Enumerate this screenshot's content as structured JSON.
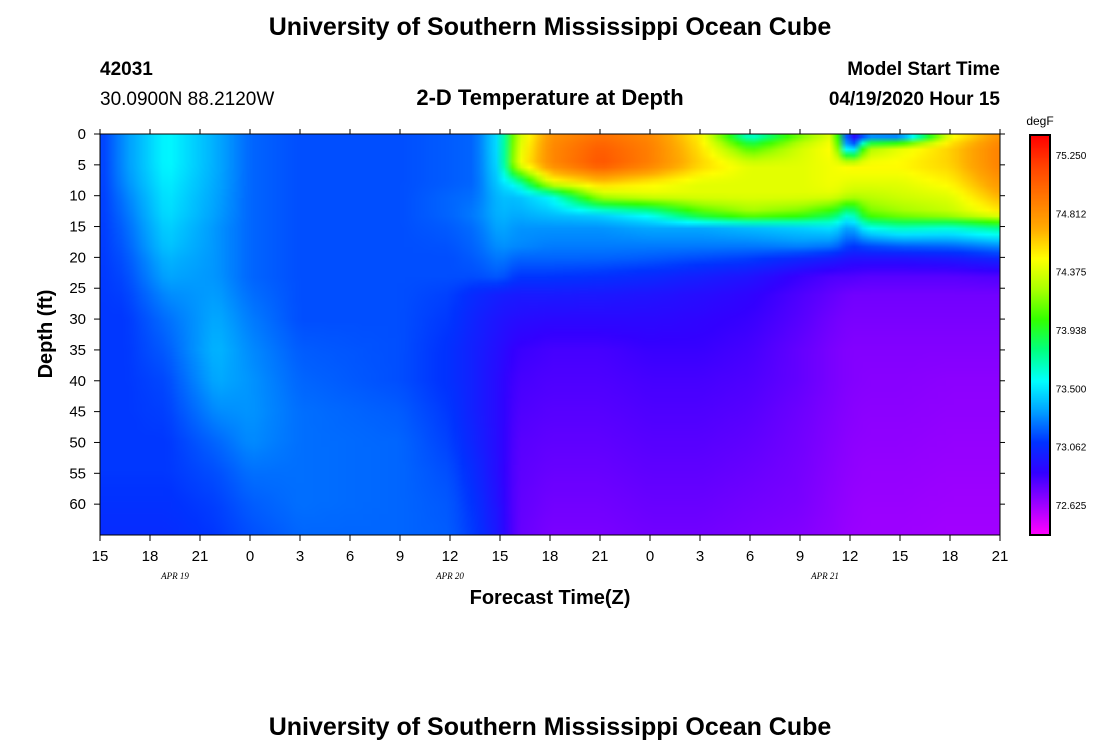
{
  "header": {
    "title": "University of Southern Mississippi Ocean Cube",
    "station_id": "42031",
    "location": "30.0900N 88.2120W",
    "plot_title": "2-D Temperature at Depth",
    "model_start_label": "Model Start Time",
    "model_start_value": "04/19/2020 Hour 15"
  },
  "footer": {
    "title": "University of Southern Mississippi Ocean Cube"
  },
  "chart_data": {
    "type": "heatmap",
    "title": "2-D Temperature at Depth",
    "xlabel": "Forecast Time(Z)",
    "ylabel": "Depth (ft)",
    "x_range_hours": [
      0,
      54
    ],
    "x_ticks": [
      {
        "hour": 0,
        "label": "15"
      },
      {
        "hour": 3,
        "label": "18"
      },
      {
        "hour": 6,
        "label": "21"
      },
      {
        "hour": 9,
        "label": "0"
      },
      {
        "hour": 12,
        "label": "3"
      },
      {
        "hour": 15,
        "label": "6"
      },
      {
        "hour": 18,
        "label": "9"
      },
      {
        "hour": 21,
        "label": "12"
      },
      {
        "hour": 24,
        "label": "15"
      },
      {
        "hour": 27,
        "label": "18"
      },
      {
        "hour": 30,
        "label": "21"
      },
      {
        "hour": 33,
        "label": "0"
      },
      {
        "hour": 36,
        "label": "3"
      },
      {
        "hour": 39,
        "label": "6"
      },
      {
        "hour": 42,
        "label": "9"
      },
      {
        "hour": 45,
        "label": "12"
      },
      {
        "hour": 48,
        "label": "15"
      },
      {
        "hour": 51,
        "label": "18"
      },
      {
        "hour": 54,
        "label": "21"
      }
    ],
    "date_labels": [
      {
        "hour": 4.5,
        "label": "APR 19"
      },
      {
        "hour": 21,
        "label": "APR 20"
      },
      {
        "hour": 43.5,
        "label": "APR 21"
      }
    ],
    "y_range_ft": [
      0,
      65
    ],
    "y_ticks": [
      0,
      5,
      10,
      15,
      20,
      25,
      30,
      35,
      40,
      45,
      50,
      55,
      60
    ],
    "colorbar": {
      "unit": "degF",
      "range": [
        72.4,
        75.4
      ],
      "tick_values": [
        75.25,
        74.812,
        74.375,
        73.938,
        73.5,
        73.062,
        72.625
      ],
      "tick_labels": [
        "75.250",
        "74.812",
        "74.375",
        "73.938",
        "73.500",
        "73.062",
        "72.625"
      ],
      "colors": [
        "#ff00ff",
        "#9900ff",
        "#3300ff",
        "#0033ff",
        "#00a0ff",
        "#00ffff",
        "#00ff80",
        "#33ff00",
        "#aaff00",
        "#ffff00",
        "#ffaa00",
        "#ff7700",
        "#ff4400",
        "#ff0000"
      ]
    },
    "temperature_field": {
      "units": "degF",
      "time_hours": [
        0,
        1.5,
        4,
        7,
        9,
        12,
        18,
        21,
        22.5,
        24,
        25,
        27,
        30,
        33,
        36,
        39,
        42,
        44,
        45,
        46,
        48,
        51,
        54
      ],
      "depth_ft": [
        0,
        2,
        5,
        8,
        10,
        13,
        15,
        18,
        20,
        23,
        26,
        30,
        35,
        40,
        45,
        50,
        55,
        60,
        65
      ],
      "values": [
        [
          73.1,
          73.3,
          73.55,
          73.35,
          73.2,
          73.15,
          73.15,
          73.18,
          73.2,
          73.52,
          74.3,
          74.8,
          74.95,
          74.85,
          74.5,
          73.5,
          74.1,
          74.4,
          72.7,
          73.0,
          72.9,
          74.4,
          74.8
        ],
        [
          73.1,
          73.3,
          73.55,
          73.35,
          73.2,
          73.15,
          73.15,
          73.18,
          73.2,
          73.52,
          74.35,
          74.85,
          75.05,
          74.9,
          74.55,
          74.0,
          74.35,
          74.5,
          73.0,
          74.2,
          74.4,
          74.6,
          74.9
        ],
        [
          73.1,
          73.3,
          73.55,
          73.35,
          73.2,
          73.15,
          73.15,
          73.18,
          73.2,
          73.5,
          74.4,
          74.85,
          75.1,
          74.9,
          74.6,
          74.4,
          74.4,
          74.45,
          74.5,
          74.5,
          74.5,
          74.6,
          74.9
        ],
        [
          73.1,
          73.28,
          73.52,
          73.34,
          73.2,
          73.15,
          73.15,
          73.18,
          73.2,
          73.45,
          73.6,
          74.4,
          74.6,
          74.5,
          74.4,
          74.4,
          74.4,
          74.45,
          74.4,
          74.4,
          74.4,
          74.5,
          74.8
        ],
        [
          73.1,
          73.25,
          73.5,
          73.33,
          73.2,
          73.15,
          73.15,
          73.2,
          73.22,
          73.4,
          73.4,
          73.55,
          74.3,
          74.4,
          74.4,
          74.4,
          74.4,
          74.4,
          74.3,
          74.3,
          74.35,
          74.4,
          74.7
        ],
        [
          73.1,
          73.22,
          73.48,
          73.32,
          73.2,
          73.15,
          73.15,
          73.2,
          73.25,
          73.38,
          73.35,
          73.4,
          73.45,
          73.6,
          74.0,
          74.2,
          74.1,
          73.9,
          73.6,
          74.1,
          74.2,
          74.3,
          74.5
        ],
        [
          73.1,
          73.2,
          73.45,
          73.3,
          73.2,
          73.15,
          73.15,
          73.18,
          73.22,
          73.35,
          73.3,
          73.3,
          73.3,
          73.35,
          73.35,
          73.4,
          73.45,
          73.5,
          73.3,
          73.6,
          73.7,
          73.65,
          73.8
        ],
        [
          73.1,
          73.18,
          73.42,
          73.3,
          73.2,
          73.15,
          73.15,
          73.16,
          73.2,
          73.3,
          73.28,
          73.25,
          73.25,
          73.25,
          73.25,
          73.25,
          73.28,
          73.25,
          73.1,
          73.15,
          73.2,
          73.22,
          73.3
        ],
        [
          73.1,
          73.16,
          73.38,
          73.3,
          73.2,
          73.15,
          73.15,
          73.15,
          73.18,
          73.25,
          73.2,
          73.2,
          73.2,
          73.18,
          73.15,
          73.12,
          73.05,
          73.0,
          72.95,
          72.95,
          72.95,
          72.98,
          73.05
        ],
        [
          73.1,
          73.14,
          73.34,
          73.3,
          73.2,
          73.15,
          73.15,
          73.15,
          73.15,
          73.18,
          73.1,
          73.1,
          73.08,
          73.05,
          73.0,
          72.95,
          72.85,
          72.8,
          72.8,
          72.78,
          72.78,
          72.78,
          72.8
        ],
        [
          73.1,
          73.12,
          73.28,
          73.32,
          73.22,
          73.15,
          73.15,
          73.12,
          73.05,
          73.0,
          72.98,
          72.98,
          72.97,
          72.95,
          72.92,
          72.88,
          72.8,
          72.75,
          72.72,
          72.72,
          72.72,
          72.72,
          72.72
        ],
        [
          73.1,
          73.1,
          73.22,
          73.35,
          73.25,
          73.15,
          73.15,
          73.1,
          73.02,
          72.95,
          72.92,
          72.9,
          72.9,
          72.9,
          72.88,
          72.85,
          72.78,
          72.72,
          72.7,
          72.7,
          72.7,
          72.7,
          72.7
        ],
        [
          73.1,
          73.1,
          73.18,
          73.38,
          73.28,
          73.18,
          73.15,
          73.08,
          73.0,
          72.92,
          72.85,
          72.82,
          72.82,
          72.85,
          72.85,
          72.82,
          72.75,
          72.7,
          72.68,
          72.68,
          72.68,
          72.68,
          72.68
        ],
        [
          73.1,
          73.1,
          73.14,
          73.35,
          73.3,
          73.2,
          73.15,
          73.08,
          73.0,
          72.9,
          72.82,
          72.8,
          72.8,
          72.82,
          72.82,
          72.8,
          72.75,
          72.7,
          72.68,
          72.67,
          72.67,
          72.66,
          72.66
        ],
        [
          73.1,
          73.1,
          73.12,
          73.28,
          73.3,
          73.22,
          73.18,
          73.1,
          73.0,
          72.9,
          72.8,
          72.78,
          72.78,
          72.8,
          72.8,
          72.78,
          72.73,
          72.69,
          72.67,
          72.66,
          72.66,
          72.65,
          72.65
        ],
        [
          73.1,
          73.1,
          73.1,
          73.2,
          73.28,
          73.22,
          73.2,
          73.12,
          73.02,
          72.9,
          72.78,
          72.76,
          72.76,
          72.78,
          72.78,
          72.76,
          72.72,
          72.68,
          72.66,
          72.65,
          72.65,
          72.64,
          72.64
        ],
        [
          73.1,
          73.1,
          73.1,
          73.15,
          73.22,
          73.22,
          73.2,
          73.15,
          73.05,
          72.9,
          72.77,
          72.74,
          72.74,
          72.76,
          72.76,
          72.74,
          72.71,
          72.67,
          72.65,
          72.64,
          72.64,
          72.63,
          72.63
        ],
        [
          73.08,
          73.08,
          73.08,
          73.12,
          73.18,
          73.22,
          73.2,
          73.17,
          73.08,
          72.92,
          72.76,
          72.72,
          72.72,
          72.74,
          72.74,
          72.72,
          72.7,
          72.66,
          72.64,
          72.63,
          72.63,
          72.62,
          72.62
        ],
        [
          73.06,
          73.06,
          73.06,
          73.1,
          73.15,
          73.2,
          73.2,
          73.18,
          73.1,
          72.95,
          72.75,
          72.7,
          72.7,
          72.72,
          72.72,
          72.7,
          72.68,
          72.65,
          72.63,
          72.62,
          72.62,
          72.61,
          72.61
        ]
      ]
    }
  }
}
